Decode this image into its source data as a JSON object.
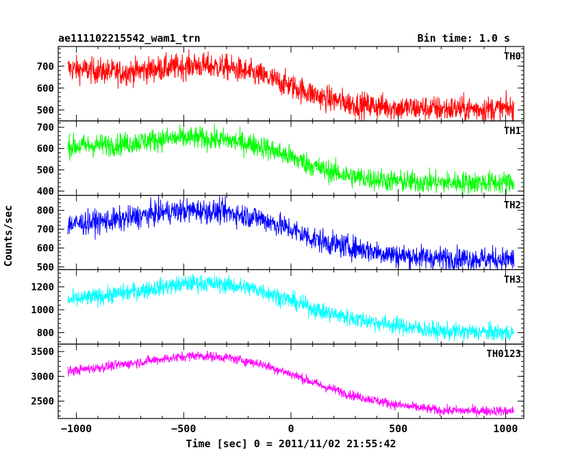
{
  "header": {
    "title": "ae111102215542_wam1_trn",
    "bin_time": "Bin time: 1.0 s"
  },
  "chart_data": {
    "type": "line",
    "xlabel": "Time [sec] 0 = 2011/11/02 21:55:42",
    "ylabel": "Counts/sec",
    "xlim": [
      -1085,
      1085
    ],
    "x_ticks": [
      -1000,
      -500,
      0,
      500,
      1000
    ],
    "x_tick_labels": [
      "−1000",
      "−500",
      "0",
      "500",
      "1000"
    ],
    "x_range": [
      -1040,
      1040
    ],
    "grid": false,
    "panels": [
      {
        "name": "TH0",
        "color": "#ff0000",
        "ylim": [
          450,
          790
        ],
        "y_ticks": [
          500,
          600,
          700
        ],
        "trend_x": [
          -1040,
          -800,
          -600,
          -450,
          -300,
          -150,
          0,
          150,
          300,
          500,
          700,
          1040
        ],
        "trend_y": [
          690,
          670,
          690,
          705,
          695,
          660,
          610,
          555,
          525,
          510,
          505,
          505
        ],
        "noise": 42
      },
      {
        "name": "TH1",
        "color": "#00ff00",
        "ylim": [
          380,
          730
        ],
        "y_ticks": [
          400,
          500,
          600,
          700
        ],
        "trend_x": [
          -1040,
          -800,
          -600,
          -450,
          -300,
          -150,
          0,
          150,
          300,
          500,
          700,
          1040
        ],
        "trend_y": [
          610,
          620,
          645,
          650,
          640,
          615,
          560,
          500,
          465,
          445,
          440,
          440
        ],
        "noise": 38
      },
      {
        "name": "TH2",
        "color": "#0000ff",
        "ylim": [
          485,
          880
        ],
        "y_ticks": [
          500,
          600,
          700,
          800
        ],
        "trend_x": [
          -1040,
          -800,
          -600,
          -450,
          -300,
          -150,
          0,
          100,
          200,
          350,
          500,
          700,
          1040
        ],
        "trend_y": [
          725,
          750,
          790,
          800,
          790,
          760,
          700,
          650,
          620,
          590,
          560,
          545,
          540
        ],
        "noise": 45
      },
      {
        "name": "TH3",
        "color": "#00ffff",
        "ylim": [
          700,
          1350
        ],
        "y_ticks": [
          800,
          1000,
          1200
        ],
        "trend_x": [
          -1040,
          -800,
          -600,
          -450,
          -300,
          -150,
          0,
          150,
          300,
          500,
          700,
          1040
        ],
        "trend_y": [
          1080,
          1140,
          1200,
          1235,
          1220,
          1175,
          1080,
          980,
          920,
          860,
          810,
          800
        ],
        "noise": 55
      },
      {
        "name": "TH0123",
        "color": "#ff00ff",
        "ylim": [
          2150,
          3650
        ],
        "y_ticks": [
          2500,
          3000,
          3500
        ],
        "trend_x": [
          -1040,
          -800,
          -600,
          -450,
          -300,
          -150,
          0,
          150,
          300,
          500,
          700,
          1040
        ],
        "trend_y": [
          3100,
          3230,
          3350,
          3420,
          3380,
          3260,
          3050,
          2800,
          2600,
          2420,
          2310,
          2300
        ],
        "noise": 70
      }
    ]
  }
}
